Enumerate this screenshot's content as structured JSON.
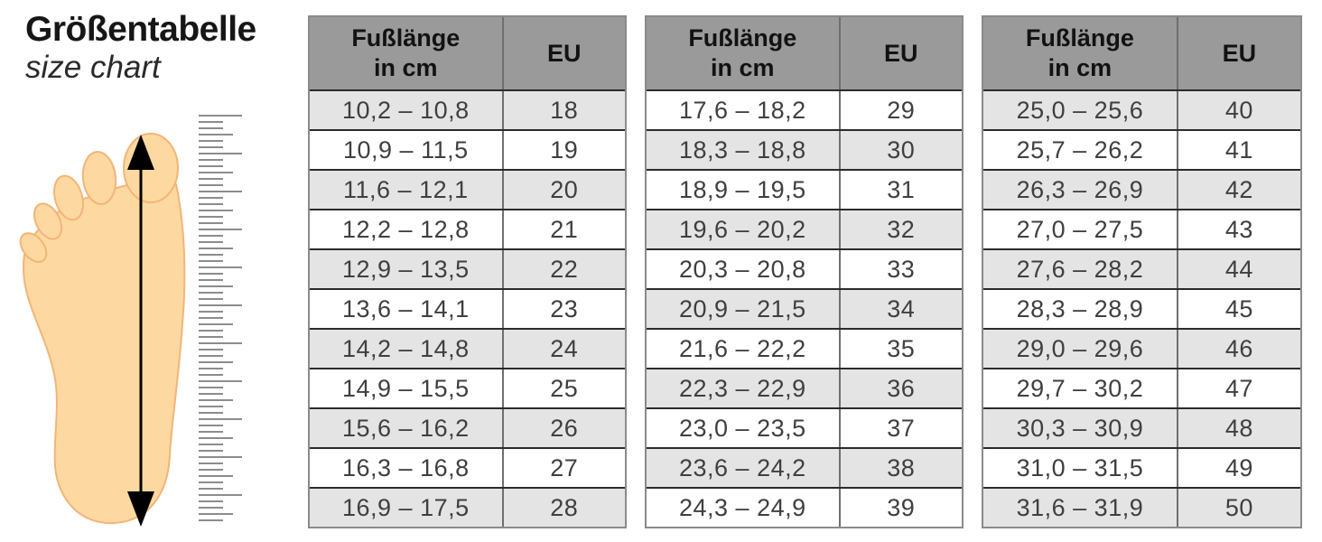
{
  "title": {
    "main": "Größentabelle",
    "sub": "size chart"
  },
  "table_headers": {
    "col1_line1": "Fußlänge",
    "col1_line2": "in cm",
    "col2": "EU"
  },
  "chart_data": [
    {
      "type": "table",
      "title": "Größentabelle / size chart (EU 18–28)",
      "columns": [
        "Fußlänge in cm",
        "EU"
      ],
      "rows": [
        [
          "10,2 – 10,8",
          "18"
        ],
        [
          "10,9 – 11,5",
          "19"
        ],
        [
          "11,6 – 12,1",
          "20"
        ],
        [
          "12,2 – 12,8",
          "21"
        ],
        [
          "12,9 – 13,5",
          "22"
        ],
        [
          "13,6 – 14,1",
          "23"
        ],
        [
          "14,2 – 14,8",
          "24"
        ],
        [
          "14,9 – 15,5",
          "25"
        ],
        [
          "15,6 – 16,2",
          "26"
        ],
        [
          "16,3 – 16,8",
          "27"
        ],
        [
          "16,9 – 17,5",
          "28"
        ]
      ]
    },
    {
      "type": "table",
      "title": "Größentabelle / size chart (EU 29–39)",
      "columns": [
        "Fußlänge in cm",
        "EU"
      ],
      "rows": [
        [
          "17,6 – 18,2",
          "29"
        ],
        [
          "18,3 – 18,8",
          "30"
        ],
        [
          "18,9 – 19,5",
          "31"
        ],
        [
          "19,6 – 20,2",
          "32"
        ],
        [
          "20,3 – 20,8",
          "33"
        ],
        [
          "20,9 – 21,5",
          "34"
        ],
        [
          "21,6 – 22,2",
          "35"
        ],
        [
          "22,3 – 22,9",
          "36"
        ],
        [
          "23,0 – 23,5",
          "37"
        ],
        [
          "23,6 – 24,2",
          "38"
        ],
        [
          "24,3 – 24,9",
          "39"
        ]
      ]
    },
    {
      "type": "table",
      "title": "Größentabelle / size chart (EU 40–50)",
      "columns": [
        "Fußlänge in cm",
        "EU"
      ],
      "rows": [
        [
          "25,0 – 25,6",
          "40"
        ],
        [
          "25,7 – 26,2",
          "41"
        ],
        [
          "26,3 – 26,9",
          "42"
        ],
        [
          "27,0 – 27,5",
          "43"
        ],
        [
          "27,6 – 28,2",
          "44"
        ],
        [
          "28,3 – 28,9",
          "45"
        ],
        [
          "29,0 – 29,6",
          "46"
        ],
        [
          "29,7 – 30,2",
          "47"
        ],
        [
          "30,3 – 30,9",
          "48"
        ],
        [
          "31,0 – 31,5",
          "49"
        ],
        [
          "31,6 – 31,9",
          "50"
        ]
      ]
    }
  ],
  "colors": {
    "header_bg": "#9a9a9a",
    "row_alt": "#e4e4e4",
    "row_plain": "#ffffff",
    "foot_fill": "#fed8a1",
    "foot_outline": "#f2b578",
    "arrow": "#000000",
    "ruler_tick": "#8c8c8c"
  }
}
